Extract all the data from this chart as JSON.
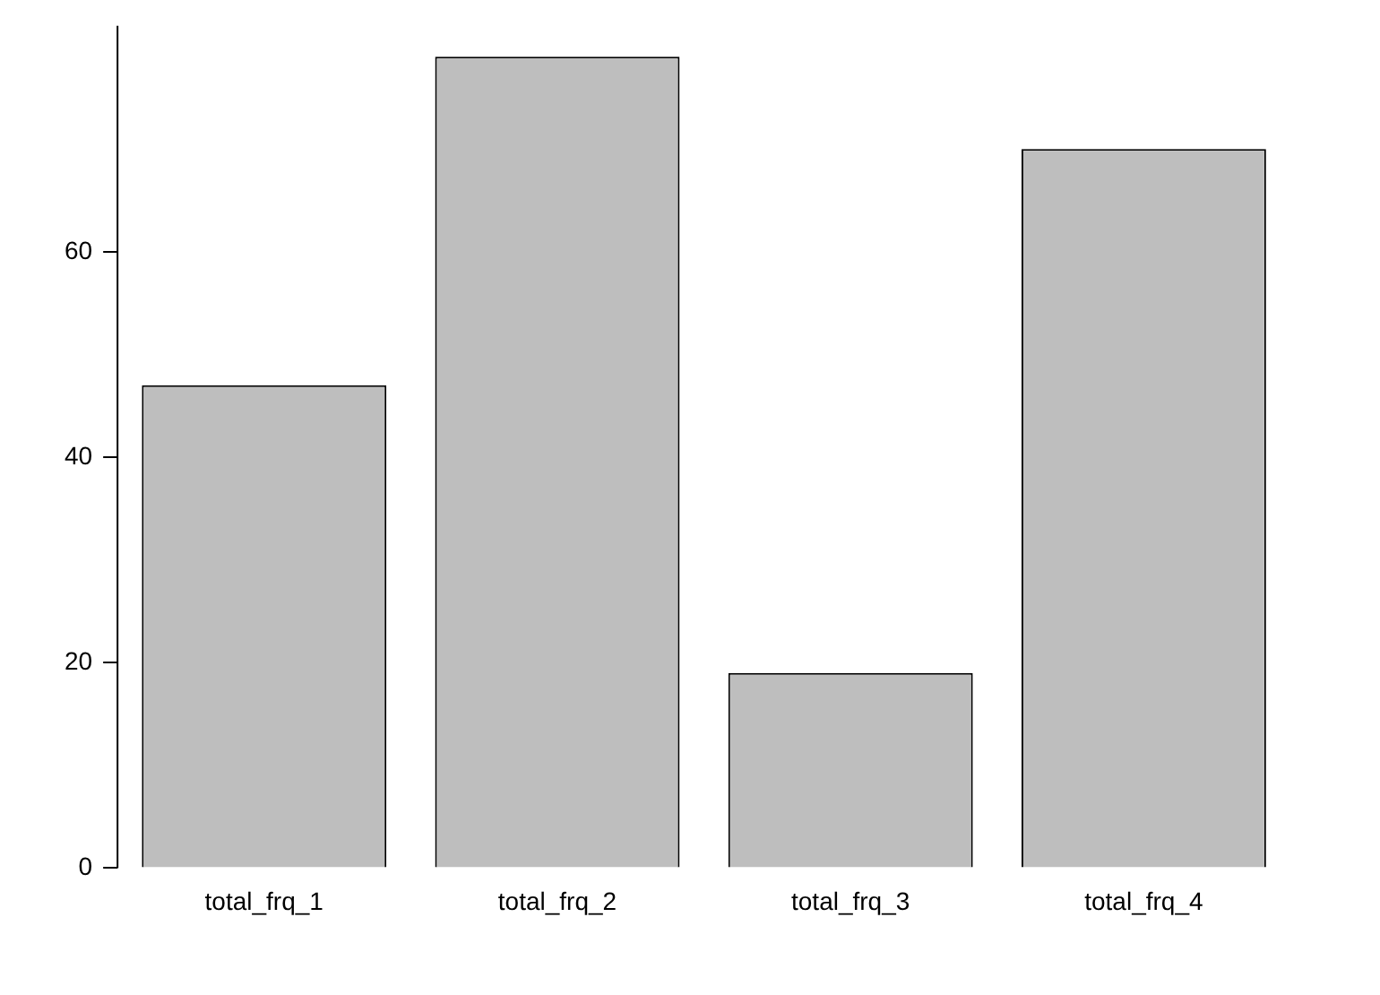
{
  "chart_data": {
    "type": "bar",
    "categories": [
      "total_frq_1",
      "total_frq_2",
      "total_frq_3",
      "total_frq_4"
    ],
    "values": [
      47,
      79,
      19,
      70
    ],
    "color": "#bebebe",
    "ylim": [
      0,
      82
    ],
    "yticks": [
      0,
      20,
      40,
      60
    ],
    "grid": false,
    "legend": false
  }
}
